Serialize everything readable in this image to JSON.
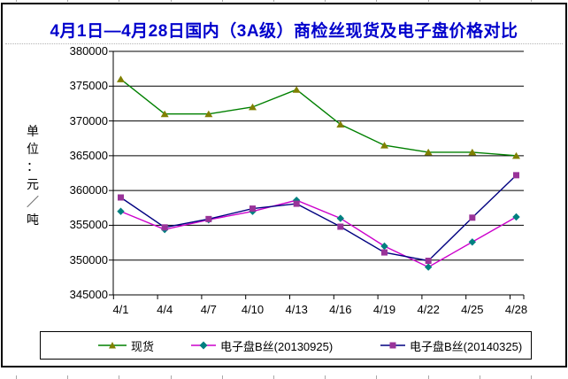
{
  "chart": {
    "title": "4月1日—4月28日国内（3A级）商检丝现货及电子盘价格对比",
    "title_color": "#0000CC",
    "frame_border_color": "#000000",
    "sheet_gridline_color": "#A8A8A8"
  },
  "chart_data": {
    "type": "line",
    "title": "4月1日—4月28日国内（3A级）商检丝现货及电子盘价格对比",
    "ylabel": "单位：元／吨",
    "xlabel": "",
    "categories": [
      "4/1",
      "4/4",
      "4/7",
      "4/10",
      "4/13",
      "4/16",
      "4/19",
      "4/22",
      "4/25",
      "4/28"
    ],
    "series": [
      {
        "name": "现货",
        "values": [
          376000,
          371000,
          371000,
          372000,
          374500,
          369500,
          366500,
          365500,
          365500,
          365000
        ],
        "line_color": "#008000",
        "marker": "triangle",
        "marker_color": "#808000"
      },
      {
        "name": "电子盘B丝(20130925)",
        "values": [
          357000,
          354400,
          355800,
          357000,
          358600,
          356000,
          352000,
          349000,
          352600,
          356200
        ],
        "line_color": "#CC00CC",
        "marker": "diamond",
        "marker_color": "#008080"
      },
      {
        "name": "电子盘B丝(20140325)",
        "values": [
          359000,
          354700,
          355900,
          357400,
          358100,
          354800,
          351100,
          349900,
          356100,
          362200
        ],
        "line_color": "#000080",
        "marker": "square",
        "marker_color": "#993399"
      }
    ],
    "ylim": [
      345000,
      380000
    ],
    "ytick_step": 5000,
    "yticks": [
      345000,
      350000,
      355000,
      360000,
      365000,
      370000,
      375000,
      380000
    ],
    "grid": true,
    "gridline_color": "#000000",
    "legend_position": "bottom"
  }
}
